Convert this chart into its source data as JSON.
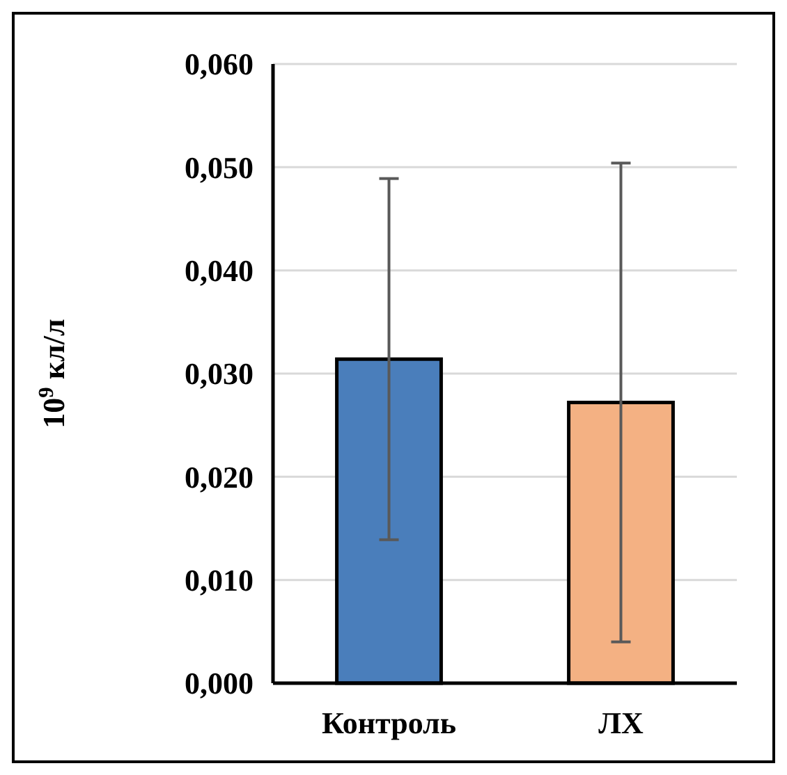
{
  "chart_data": {
    "type": "bar",
    "ylabel": "10$^{9}$ кл/л",
    "categories": [
      "Контроль",
      "ЛХ"
    ],
    "values": [
      0.0314,
      0.0272
    ],
    "colors": [
      "#4a7ebb",
      "#f4b183"
    ],
    "errors": [
      [
        0.0139,
        0.0489
      ],
      [
        0.004,
        0.0504
      ]
    ],
    "ylim": [
      0,
      0.06
    ],
    "yticks": [
      {
        "value": 0,
        "label": "0,000"
      },
      {
        "value": 0.01,
        "label": "0,010"
      },
      {
        "value": 0.02,
        "label": "0,020"
      },
      {
        "value": 0.03,
        "label": "0,030"
      },
      {
        "value": 0.04,
        "label": "0,040"
      },
      {
        "value": 0.05,
        "label": "0,050"
      },
      {
        "value": 0.06,
        "label": "0,060"
      }
    ],
    "grid": "y"
  }
}
